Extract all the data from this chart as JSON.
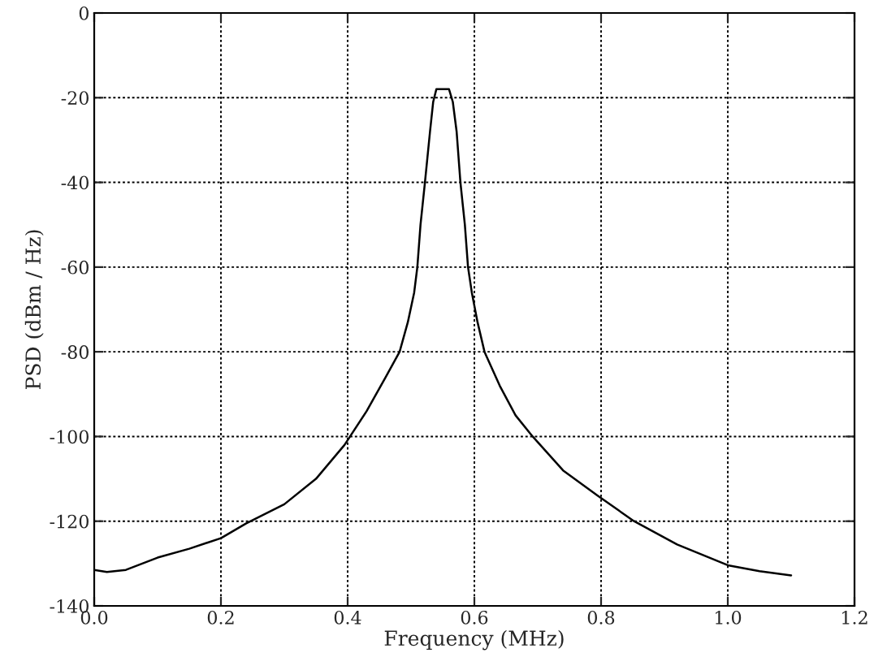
{
  "chart_data": {
    "type": "line",
    "xlabel": "Frequency (MHz)",
    "ylabel": "PSD (dBm / Hz)",
    "series": [
      {
        "color": "#000000",
        "x": [
          0.0,
          0.02,
          0.05,
          0.1,
          0.15,
          0.2,
          0.24,
          0.3,
          0.35,
          0.395,
          0.43,
          0.46,
          0.482,
          0.495,
          0.505,
          0.51,
          0.515,
          0.522,
          0.53,
          0.535,
          0.54,
          0.55,
          0.56,
          0.566,
          0.572,
          0.578,
          0.585,
          0.59,
          0.596,
          0.605,
          0.616,
          0.64,
          0.665,
          0.692,
          0.74,
          0.795,
          0.852,
          0.92,
          1.0,
          1.05,
          1.1
        ],
        "values": [
          -131.5,
          -132,
          -131.5,
          -128.6,
          -126.5,
          -124,
          -120.5,
          -116,
          -110,
          -102,
          -94,
          -86,
          -80,
          -73,
          -66,
          -60,
          -50,
          -40,
          -28,
          -21,
          -18,
          -18,
          -18,
          -21,
          -28,
          -40,
          -50,
          -60,
          -66,
          -73,
          -80,
          -88,
          -95,
          -100,
          -108,
          -114,
          -120,
          -125.5,
          -130.4,
          -131.8,
          -132.8
        ]
      }
    ],
    "xlim": [
      0,
      1.2
    ],
    "ylim": [
      -140,
      0
    ],
    "xticks": [
      {
        "value": 0,
        "label": "0.0"
      },
      0.2,
      0.4,
      0.6,
      0.8,
      {
        "value": 1.0,
        "label": "1.0"
      },
      1.2
    ],
    "yticks": [
      -140,
      -120,
      -100,
      -80,
      -60,
      -40,
      -20,
      0
    ],
    "grid": true,
    "legend": false,
    "marker": "none",
    "line_style": "solid"
  }
}
